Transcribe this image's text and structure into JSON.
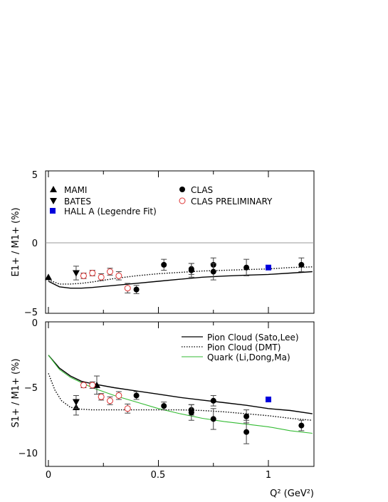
{
  "chart_data": [
    {
      "type": "scatter",
      "ylabel": "E1+ / M1+ (%)",
      "ylim": [
        -5.2,
        5.2
      ],
      "xlim": [
        -0.02,
        1.2
      ],
      "grid": false,
      "zero_line": true,
      "yticks": [
        "5",
        "0",
        "−5"
      ],
      "legend_placement": "top",
      "series": [
        {
          "name": "MAMI",
          "marker": "triangle-up",
          "color": "#000000",
          "points": [
            {
              "x": 0.0,
              "y": -2.5
            }
          ]
        },
        {
          "name": "BATES",
          "marker": "triangle-down",
          "color": "#000000",
          "points": [
            {
              "x": 0.126,
              "y": -2.2,
              "err": 0.5
            }
          ]
        },
        {
          "name": "HALL A (Legendre Fit)",
          "marker": "square",
          "color": "#0000dd",
          "points": [
            {
              "x": 1.0,
              "y": -1.8
            }
          ]
        },
        {
          "name": "CLAS",
          "marker": "circle-filled",
          "color": "#000000",
          "points": [
            {
              "x": 0.4,
              "y": -3.4,
              "err": 0.3
            },
            {
              "x": 0.525,
              "y": -1.6,
              "err": 0.4
            },
            {
              "x": 0.65,
              "y": -1.9,
              "err": 0.4
            },
            {
              "x": 0.65,
              "y": -2.0,
              "err": 0.5
            },
            {
              "x": 0.75,
              "y": -1.6,
              "err": 0.5
            },
            {
              "x": 0.75,
              "y": -2.1,
              "err": 0.6
            },
            {
              "x": 0.9,
              "y": -1.8,
              "err": 0.6
            },
            {
              "x": 1.15,
              "y": -1.6,
              "err": 0.5
            }
          ]
        },
        {
          "name": "CLAS PRELIMINARY",
          "marker": "circle-open",
          "color": "#dd3333",
          "points": [
            {
              "x": 0.16,
              "y": -2.4,
              "err": 0.2
            },
            {
              "x": 0.2,
              "y": -2.2,
              "err": 0.2
            },
            {
              "x": 0.24,
              "y": -2.5,
              "err": 0.25
            },
            {
              "x": 0.28,
              "y": -2.1,
              "err": 0.25
            },
            {
              "x": 0.32,
              "y": -2.4,
              "err": 0.3
            },
            {
              "x": 0.36,
              "y": -3.3,
              "err": 0.35
            }
          ]
        }
      ],
      "curves": [
        {
          "style": "solid",
          "color": "#000000",
          "x": [
            0,
            0.05,
            0.1,
            0.15,
            0.2,
            0.3,
            0.4,
            0.5,
            0.6,
            0.7,
            0.8,
            0.9,
            1.0,
            1.1,
            1.2
          ],
          "y": [
            -2.8,
            -3.2,
            -3.3,
            -3.3,
            -3.25,
            -3.1,
            -2.95,
            -2.8,
            -2.65,
            -2.5,
            -2.42,
            -2.35,
            -2.3,
            -2.2,
            -2.1
          ]
        },
        {
          "style": "dotted",
          "color": "#000000",
          "x": [
            0,
            0.05,
            0.1,
            0.15,
            0.2,
            0.3,
            0.4,
            0.5,
            0.6,
            0.7,
            0.8,
            0.9,
            1.0,
            1.1,
            1.2
          ],
          "y": [
            -2.7,
            -3.0,
            -3.0,
            -2.95,
            -2.85,
            -2.6,
            -2.4,
            -2.25,
            -2.15,
            -2.05,
            -2.0,
            -1.95,
            -1.9,
            -1.8,
            -1.75
          ]
        }
      ]
    },
    {
      "type": "scatter",
      "ylabel": "S1+ / M1+ (%)",
      "xlabel": "Q² (GeV²)",
      "ylim": [
        -11,
        0
      ],
      "xlim": [
        -0.02,
        1.2
      ],
      "grid": false,
      "yticks": [
        "0",
        "−5",
        "−10"
      ],
      "xticks": [
        "0",
        "0.5",
        "1"
      ],
      "legend_placement": "top-right",
      "legend": [
        "Pion Cloud (Sato,Lee)",
        "Pion Cloud (DMT)",
        "Quark (Li,Dong,Ma)"
      ],
      "series": [
        {
          "name": "MAMI",
          "marker": "triangle-up",
          "color": "#000000",
          "points": [
            {
              "x": 0.126,
              "y": -6.5,
              "err": 0.6
            },
            {
              "x": 0.22,
              "y": -4.8,
              "err": 0.7
            }
          ]
        },
        {
          "name": "BATES",
          "marker": "triangle-down",
          "color": "#000000",
          "points": [
            {
              "x": 0.126,
              "y": -6.1,
              "err": 0.5
            }
          ]
        },
        {
          "name": "HALL A (Legendre Fit)",
          "marker": "square",
          "color": "#0000dd",
          "points": [
            {
              "x": 1.0,
              "y": -5.9
            }
          ]
        },
        {
          "name": "CLAS",
          "marker": "circle-filled",
          "color": "#000000",
          "points": [
            {
              "x": 0.4,
              "y": -5.6,
              "err": 0.3
            },
            {
              "x": 0.525,
              "y": -6.4,
              "err": 0.3
            },
            {
              "x": 0.65,
              "y": -6.7,
              "err": 0.4
            },
            {
              "x": 0.65,
              "y": -6.9,
              "err": 0.6
            },
            {
              "x": 0.75,
              "y": -6.0,
              "err": 0.4
            },
            {
              "x": 0.75,
              "y": -7.4,
              "err": 0.8
            },
            {
              "x": 0.9,
              "y": -7.2,
              "err": 0.5
            },
            {
              "x": 0.9,
              "y": -8.4,
              "err": 0.9
            },
            {
              "x": 1.15,
              "y": -7.9,
              "err": 0.4
            }
          ]
        },
        {
          "name": "CLAS PRELIMINARY",
          "marker": "circle-open",
          "color": "#dd3333",
          "points": [
            {
              "x": 0.16,
              "y": -4.8,
              "err": 0.2
            },
            {
              "x": 0.2,
              "y": -4.8,
              "err": 0.25
            },
            {
              "x": 0.24,
              "y": -5.7,
              "err": 0.25
            },
            {
              "x": 0.28,
              "y": -6.0,
              "err": 0.3
            },
            {
              "x": 0.32,
              "y": -5.6,
              "err": 0.3
            },
            {
              "x": 0.36,
              "y": -6.6,
              "err": 0.35
            }
          ]
        }
      ],
      "curves": [
        {
          "name": "Pion Cloud (Sato,Lee)",
          "style": "solid",
          "color": "#000000",
          "x": [
            0,
            0.05,
            0.1,
            0.15,
            0.2,
            0.3,
            0.4,
            0.5,
            0.6,
            0.7,
            0.8,
            0.9,
            1.0,
            1.1,
            1.2
          ],
          "y": [
            -2.5,
            -3.5,
            -4.1,
            -4.5,
            -4.7,
            -5.0,
            -5.25,
            -5.5,
            -5.75,
            -5.95,
            -6.15,
            -6.35,
            -6.6,
            -6.75,
            -7.0
          ]
        },
        {
          "name": "Pion Cloud (DMT)",
          "style": "dotted",
          "color": "#000000",
          "x": [
            0,
            0.03,
            0.06,
            0.1,
            0.15,
            0.2,
            0.3,
            0.4,
            0.5,
            0.6,
            0.7,
            0.8,
            0.9,
            1.0,
            1.1,
            1.2
          ],
          "y": [
            -3.9,
            -5.2,
            -6.0,
            -6.5,
            -6.65,
            -6.7,
            -6.7,
            -6.7,
            -6.7,
            -6.7,
            -6.75,
            -6.85,
            -7.0,
            -7.15,
            -7.35,
            -7.5
          ]
        },
        {
          "name": "Quark (Li,Dong,Ma)",
          "style": "solid",
          "color": "#33bb33",
          "x": [
            0,
            0.05,
            0.1,
            0.15,
            0.2,
            0.3,
            0.4,
            0.5,
            0.6,
            0.7,
            0.8,
            0.9,
            1.0,
            1.1,
            1.2
          ],
          "y": [
            -2.5,
            -3.6,
            -4.2,
            -4.6,
            -5.0,
            -5.6,
            -6.1,
            -6.6,
            -7.0,
            -7.35,
            -7.6,
            -7.8,
            -8.0,
            -8.3,
            -8.5
          ]
        }
      ]
    }
  ],
  "legend_top": [
    {
      "label": "MAMI",
      "marker": "triangle-up",
      "color": "#000000"
    },
    {
      "label": "BATES",
      "marker": "triangle-down",
      "color": "#000000"
    },
    {
      "label": "HALL A (Legendre Fit)",
      "marker": "square",
      "color": "#0000dd"
    },
    {
      "label": "CLAS",
      "marker": "circle-filled",
      "color": "#000000"
    },
    {
      "label": "CLAS PRELIMINARY",
      "marker": "circle-open",
      "color": "#dd3333"
    }
  ]
}
